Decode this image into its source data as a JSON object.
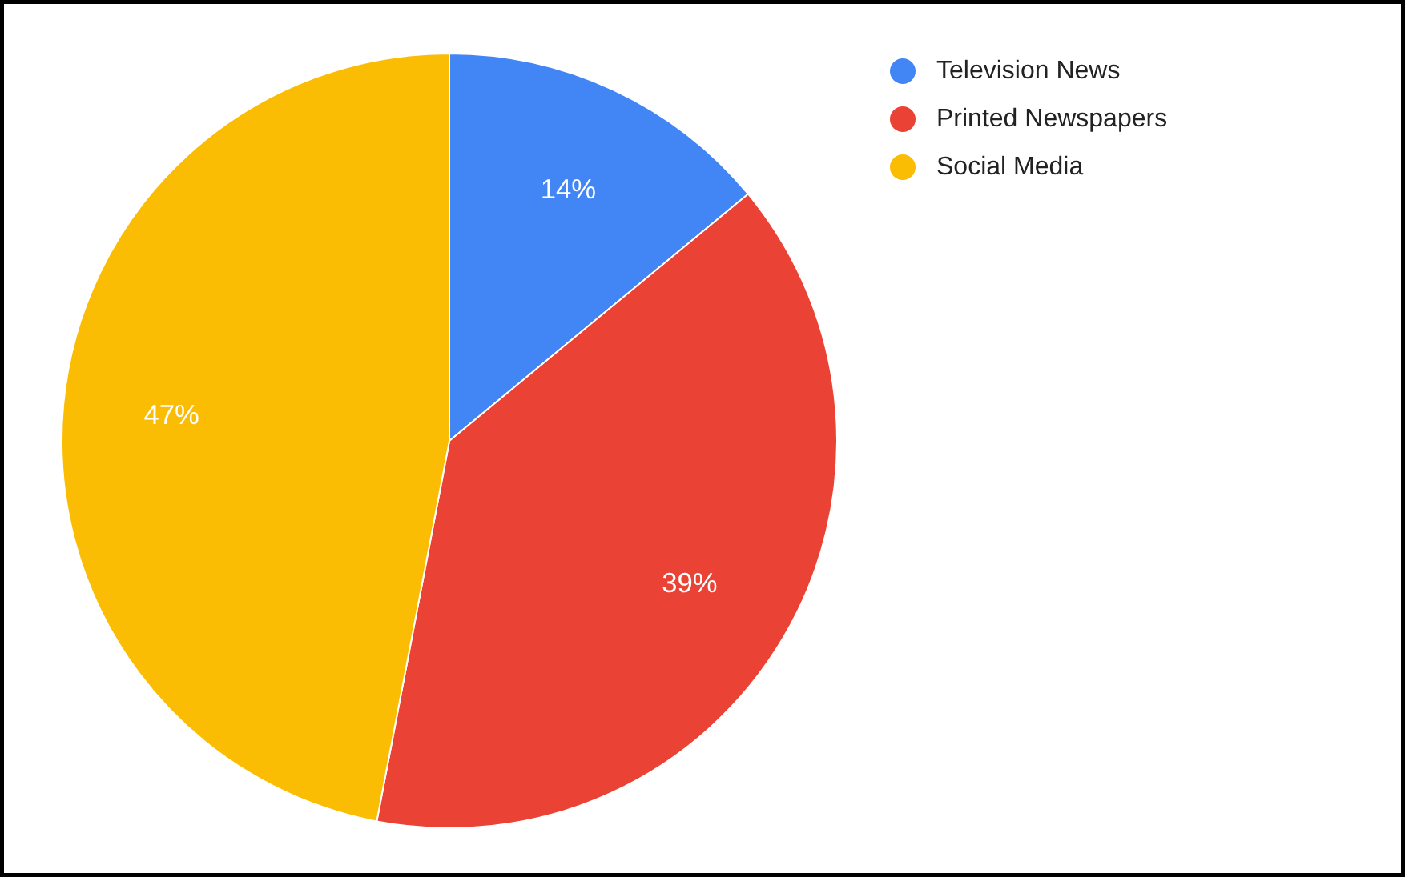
{
  "chart_data": {
    "type": "pie",
    "categories": [
      "Television News",
      "Printed Newspapers",
      "Social Media"
    ],
    "values": [
      14,
      39,
      47
    ],
    "colors": [
      "#4285f4",
      "#ea4335",
      "#fbbc04"
    ],
    "value_labels": [
      "14%",
      "39%",
      "47%"
    ],
    "legend": "top right"
  }
}
